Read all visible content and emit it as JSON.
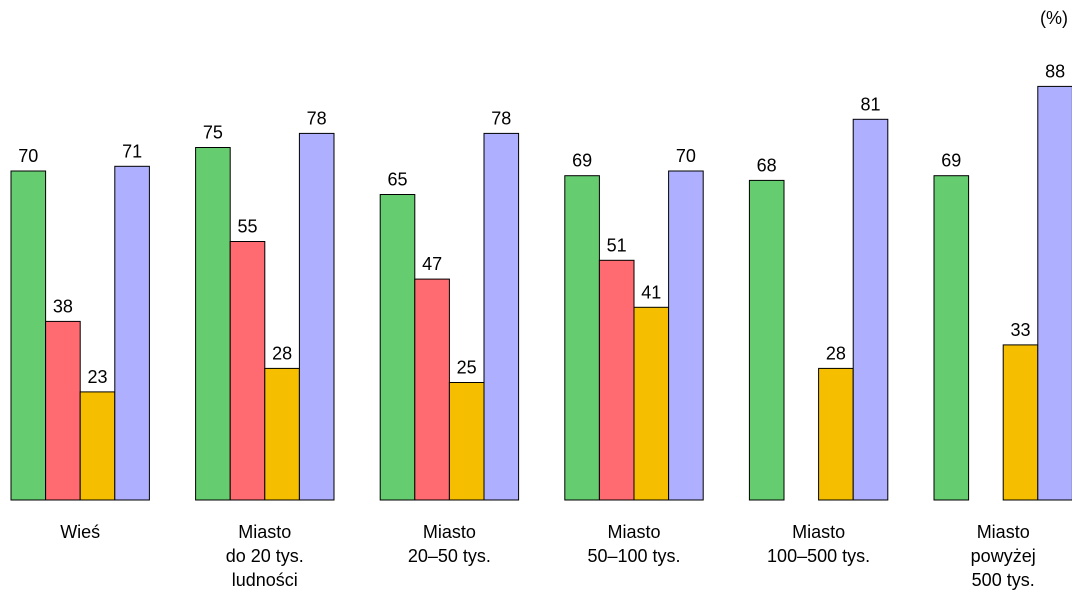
{
  "chart_data": {
    "type": "bar",
    "unit": "(%)",
    "ylim": [
      0,
      100
    ],
    "grid": false,
    "legend": "none",
    "categories": [
      [
        "Wieś"
      ],
      [
        "Miasto",
        "do 20 tys.",
        "ludności"
      ],
      [
        "Miasto",
        "20–50 tys."
      ],
      [
        "Miasto",
        "50–100 tys."
      ],
      [
        "Miasto",
        "100–500 tys."
      ],
      [
        "Miasto",
        "powyżej",
        "500 tys."
      ]
    ],
    "series": [
      {
        "color": "#66cc70",
        "values": [
          70,
          75,
          65,
          69,
          68,
          69
        ]
      },
      {
        "color": "#ff6b70",
        "values": [
          38,
          55,
          47,
          51,
          null,
          null
        ]
      },
      {
        "color": "#f5bf00",
        "values": [
          23,
          28,
          25,
          41,
          28,
          33
        ]
      },
      {
        "color": "#aeb0ff",
        "values": [
          71,
          78,
          78,
          70,
          81,
          88
        ]
      }
    ]
  }
}
